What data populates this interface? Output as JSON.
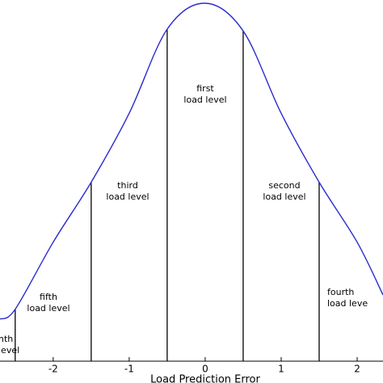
{
  "chart_data": {
    "type": "line",
    "x_label": "Load Prediction Error",
    "x": [
      -2.7,
      -2.5,
      -2.0,
      -1.5,
      -1.0,
      -0.5,
      0,
      0.5,
      1.0,
      1.5,
      2.0,
      2.34
    ],
    "series": [
      {
        "color": "#2a2ad0",
        "values": [
          0.047,
          0.058,
          0.133,
          0.2,
          0.277,
          0.371,
          0.4,
          0.369,
          0.277,
          0.2,
          0.133,
          0.074
        ]
      }
    ],
    "boundaries": [
      -2.5,
      -1.5,
      -0.5,
      0.5,
      1.5
    ],
    "boundary_color": "#000000",
    "annotations": [
      {
        "lines": [
          "nth",
          "level"
        ]
      },
      {
        "lines": [
          "fifth",
          "load level"
        ]
      },
      {
        "lines": [
          "third",
          "load level"
        ]
      },
      {
        "lines": [
          "first",
          "load level"
        ]
      },
      {
        "lines": [
          "second",
          "load level"
        ]
      },
      {
        "lines": [
          "fourth",
          "load leve"
        ]
      }
    ],
    "xlim": [
      -2.7,
      2.34
    ],
    "ylim": [
      0,
      0.4
    ],
    "xticks": [
      -2,
      -1,
      0,
      1,
      2
    ]
  }
}
